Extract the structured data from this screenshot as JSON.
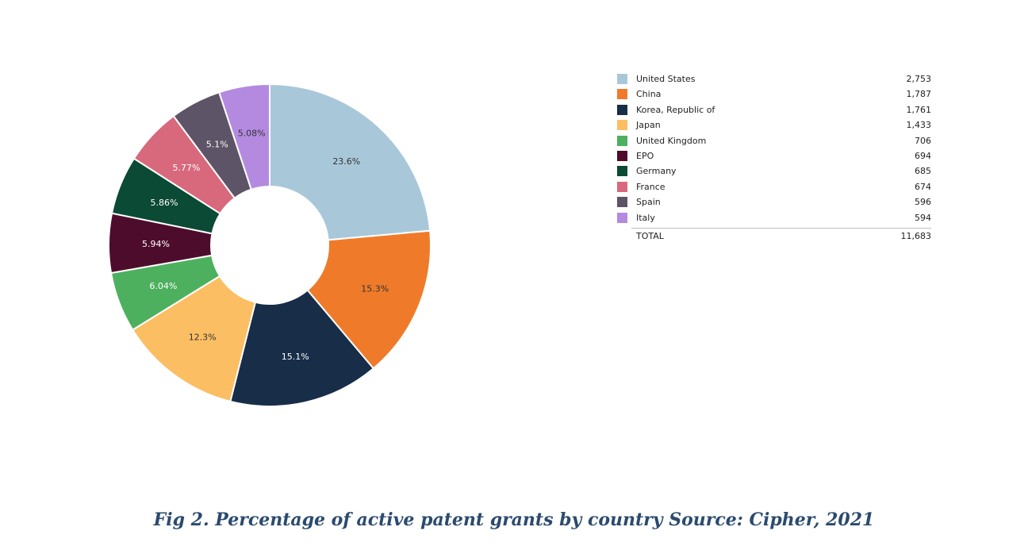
{
  "chart_data": {
    "type": "pie",
    "style": "donut",
    "series": [
      {
        "name": "United States",
        "value": 2753,
        "label": "23.6%",
        "color": "#a8c8da"
      },
      {
        "name": "China",
        "value": 1787,
        "label": "15.3%",
        "color": "#ef7b2a"
      },
      {
        "name": "Korea, Republic of",
        "value": 1761,
        "label": "15.1%",
        "color": "#172d48"
      },
      {
        "name": "Japan",
        "value": 1433,
        "label": "12.3%",
        "color": "#fcbe63"
      },
      {
        "name": "United Kingdom",
        "value": 706,
        "label": "6.04%",
        "color": "#4db05e"
      },
      {
        "name": "EPO",
        "value": 694,
        "label": "5.94%",
        "color": "#4e0c2c"
      },
      {
        "name": "Germany",
        "value": 685,
        "label": "5.86%",
        "color": "#0b4a35"
      },
      {
        "name": "France",
        "value": 674,
        "label": "5.77%",
        "color": "#d8697d"
      },
      {
        "name": "Spain",
        "value": 596,
        "label": "5.1%",
        "color": "#5d5467"
      },
      {
        "name": "Italy",
        "value": 594,
        "label": "5.08%",
        "color": "#b48ae0"
      }
    ],
    "legend": {
      "placement": "right",
      "rows": [
        {
          "name": "United States",
          "display_value": "2,753"
        },
        {
          "name": "China",
          "display_value": "1,787"
        },
        {
          "name": "Korea, Republic of",
          "display_value": "1,761"
        },
        {
          "name": "Japan",
          "display_value": "1,433"
        },
        {
          "name": "United Kingdom",
          "display_value": "706"
        },
        {
          "name": "EPO",
          "display_value": "694"
        },
        {
          "name": "Germany",
          "display_value": "685"
        },
        {
          "name": "France",
          "display_value": "674"
        },
        {
          "name": "Spain",
          "display_value": "596"
        },
        {
          "name": "Italy",
          "display_value": "594"
        }
      ],
      "total_label": "TOTAL",
      "total_value": "11,683"
    },
    "title": "Fig 2. Percentage of active patent grants by country Source: Cipher, 2021"
  }
}
